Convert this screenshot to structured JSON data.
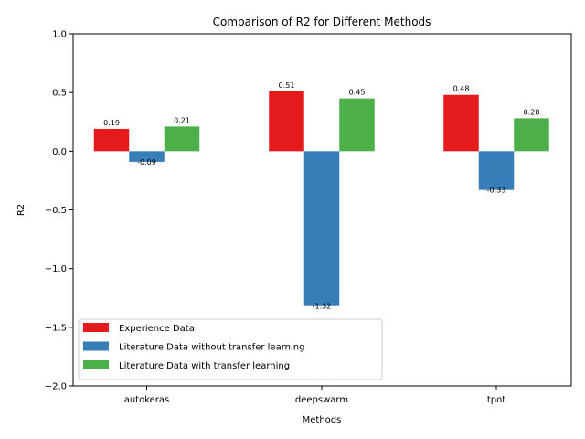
{
  "chart_data": {
    "type": "bar",
    "title": "Comparison of R2 for Different Methods",
    "xlabel": "Methods",
    "ylabel": "R2",
    "categories": [
      "autokeras",
      "deepswarm",
      "tpot"
    ],
    "ylim": [
      -2.0,
      1.0
    ],
    "yticks": [
      -2.0,
      -1.5,
      -1.0,
      -0.5,
      0.0,
      0.5,
      1.0
    ],
    "ytick_labels": [
      "−2.0",
      "−1.5",
      "−1.0",
      "−0.5",
      "0.0",
      "0.5",
      "1.0"
    ],
    "grid": false,
    "legend_position": "bottom-left",
    "series": [
      {
        "name": "Experience Data",
        "color": "#e41a1c",
        "values": [
          0.19,
          0.51,
          0.48
        ],
        "labels": [
          "0.19",
          "0.51",
          "0.48"
        ]
      },
      {
        "name": "Literature Data without transfer learning",
        "color": "#377eb8",
        "values": [
          -0.09,
          -1.32,
          -0.33
        ],
        "labels": [
          "-0.09",
          "-1.32",
          "-0.33"
        ]
      },
      {
        "name": "Literature Data with transfer learning",
        "color": "#4daf4a",
        "values": [
          0.21,
          0.45,
          0.28
        ],
        "labels": [
          "0.21",
          "0.45",
          "0.28"
        ]
      }
    ]
  }
}
